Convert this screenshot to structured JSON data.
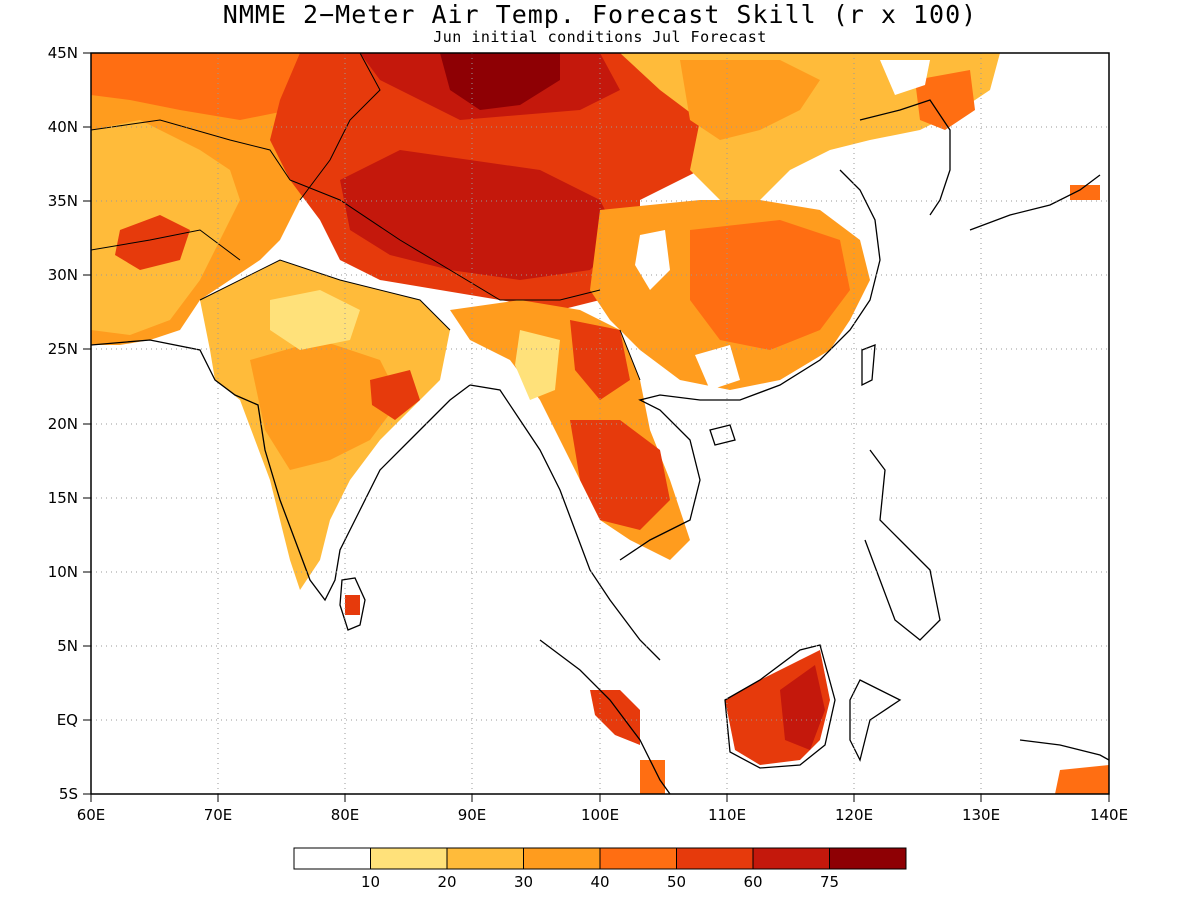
{
  "title": "NMME 2−Meter Air Temp. Forecast Skill (r x 100)",
  "subtitle": "Jun initial conditions  Jul Forecast",
  "map": {
    "lon_range": [
      60,
      140
    ],
    "lat_range": [
      -5,
      45
    ],
    "grid": "dotted",
    "lon_ticks": [
      "60E",
      "70E",
      "80E",
      "90E",
      "100E",
      "110E",
      "120E",
      "130E",
      "140E"
    ],
    "lat_ticks": [
      "45N",
      "40N",
      "35N",
      "30N",
      "25N",
      "20N",
      "15N",
      "10N",
      "5N",
      "EQ",
      "5S"
    ],
    "coastline_color": "#000000"
  },
  "colorbar": {
    "colors": [
      "#ffffff",
      "#ffe17a",
      "#ffbb3a",
      "#ff9c1e",
      "#ff6e12",
      "#e63a0c",
      "#c4180c",
      "#8e0004"
    ],
    "labels": [
      "10",
      "20",
      "30",
      "40",
      "50",
      "60",
      "75"
    ]
  }
}
